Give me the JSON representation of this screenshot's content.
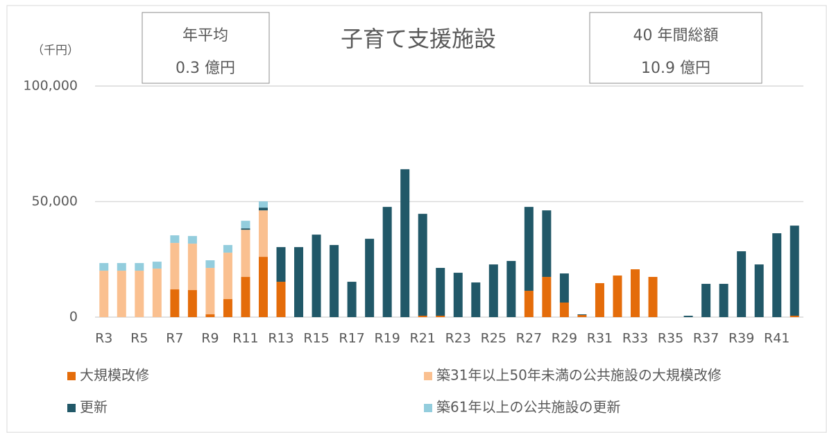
{
  "chart_data": {
    "type": "stacked_bar",
    "title": "子育て支援施設",
    "unit_label": "（千円）",
    "boxes": [
      {
        "lines": [
          "年平均",
          "0.3 億円"
        ]
      },
      {
        "lines": [
          "40 年間総額",
          "10.9 億円"
        ]
      }
    ],
    "categories": [
      "R3",
      null,
      "R5",
      null,
      "R7",
      null,
      "R9",
      null,
      "R11",
      null,
      "R13",
      null,
      "R15",
      null,
      "R17",
      null,
      "R19",
      null,
      "R21",
      null,
      "R23",
      null,
      "R25",
      null,
      "R27",
      null,
      "R29",
      null,
      "R31",
      null,
      "R33",
      null,
      "R35",
      null,
      "R37",
      null,
      "R39",
      null,
      "R41",
      null
    ],
    "series": [
      {
        "name": "大規模改修",
        "color": "#e46c0a",
        "values": [
          0,
          0,
          0,
          0,
          12000,
          11700,
          1200,
          7800,
          17400,
          26100,
          15300,
          0,
          0,
          0,
          0,
          0,
          0,
          0,
          600,
          600,
          0,
          0,
          0,
          0,
          11400,
          17400,
          6300,
          900,
          14700,
          18000,
          20700,
          17400,
          0,
          0,
          0,
          0,
          0,
          0,
          0,
          600
        ]
      },
      {
        "name": "築31年以上50年未満の公共施設の大規模改修",
        "color": "#fac090",
        "values": [
          20100,
          20100,
          20100,
          21000,
          20100,
          20100,
          20100,
          20100,
          20400,
          20100,
          0,
          0,
          0,
          0,
          0,
          0,
          0,
          0,
          0,
          0,
          0,
          0,
          0,
          0,
          0,
          0,
          0,
          0,
          0,
          0,
          0,
          0,
          0,
          0,
          0,
          0,
          0,
          0,
          0,
          0
        ]
      },
      {
        "name": "更新",
        "color": "#215868",
        "values": [
          0,
          0,
          0,
          0,
          0,
          0,
          0,
          0,
          600,
          1200,
          15000,
          30300,
          35700,
          31200,
          15300,
          33900,
          47700,
          64000,
          44100,
          20700,
          19200,
          15000,
          22800,
          24300,
          36300,
          28800,
          12600,
          300,
          0,
          0,
          0,
          0,
          0,
          600,
          14400,
          14400,
          28500,
          22800,
          36300,
          39000
        ]
      },
      {
        "name": "築61年以上の公共施設の更新",
        "color": "#93cddd",
        "values": [
          3300,
          3300,
          3300,
          3000,
          3300,
          3300,
          3300,
          3300,
          3300,
          2700,
          0,
          0,
          0,
          0,
          0,
          0,
          0,
          0,
          0,
          0,
          0,
          0,
          0,
          0,
          0,
          0,
          0,
          0,
          0,
          0,
          0,
          0,
          0,
          0,
          0,
          0,
          0,
          0,
          0,
          0
        ]
      }
    ],
    "ylim": [
      0,
      100000
    ],
    "yticks": [
      0,
      {
        "value": 50000,
        "label": "50,000"
      },
      {
        "value": 100000,
        "label": "100,000"
      }
    ],
    "grid": true
  }
}
